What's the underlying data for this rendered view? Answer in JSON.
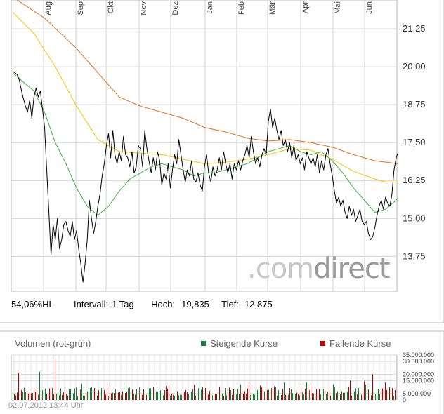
{
  "chart_data": [
    {
      "type": "line",
      "months": [
        "Aug",
        "Sep",
        "Okt",
        "Nov",
        "Dez",
        "Jan",
        "Feb",
        "Mär",
        "Apr",
        "Mai",
        "Jun"
      ],
      "y_ticks": [
        "21,25",
        "20,00",
        "18,75",
        "17,50",
        "16,25",
        "15,00",
        "13,75"
      ],
      "y_tick_values": [
        21.25,
        20.0,
        18.75,
        17.5,
        16.25,
        15.0,
        13.75
      ],
      "ylim": [
        12.6,
        22.2
      ],
      "grid": true,
      "series": [
        {
          "color": "#000000",
          "width": 1,
          "points": [
            [
              0,
              19.85
            ],
            [
              4,
              19.75
            ],
            [
              6,
              19.6
            ],
            [
              9,
              19.1
            ],
            [
              12,
              18.7
            ],
            [
              14,
              18.5
            ],
            [
              16,
              18.9
            ],
            [
              18,
              18.3
            ],
            [
              20,
              19.0
            ],
            [
              22,
              19.3
            ],
            [
              24,
              19.0
            ],
            [
              26,
              19.2
            ],
            [
              28,
              18.6
            ],
            [
              30,
              18.0
            ],
            [
              32,
              16.6
            ],
            [
              34,
              15.2
            ],
            [
              36,
              13.8
            ],
            [
              38,
              14.8
            ],
            [
              40,
              14.3
            ],
            [
              42,
              15.0
            ],
            [
              44,
              14.0
            ],
            [
              46,
              14.3
            ],
            [
              48,
              14.8
            ],
            [
              50,
              14.9
            ],
            [
              52,
              14.6
            ],
            [
              54,
              14.4
            ],
            [
              56,
              14.9
            ],
            [
              58,
              14.3
            ],
            [
              60,
              14.6
            ],
            [
              62,
              14.0
            ],
            [
              64,
              13.5
            ],
            [
              66,
              12.9
            ],
            [
              68,
              13.5
            ],
            [
              70,
              14.3
            ],
            [
              72,
              15.6
            ],
            [
              74,
              15.0
            ],
            [
              76,
              14.5
            ],
            [
              78,
              14.9
            ],
            [
              80,
              15.4
            ],
            [
              82,
              15.8
            ],
            [
              84,
              16.4
            ],
            [
              86,
              16.8
            ],
            [
              88,
              17.4
            ],
            [
              90,
              17.8
            ],
            [
              92,
              17.0
            ],
            [
              94,
              17.9
            ],
            [
              96,
              17.1
            ],
            [
              98,
              16.8
            ],
            [
              100,
              17.2
            ],
            [
              102,
              16.9
            ],
            [
              104,
              17.7
            ],
            [
              106,
              17.1
            ],
            [
              108,
              17.0
            ],
            [
              110,
              16.7
            ],
            [
              112,
              17.2
            ],
            [
              114,
              16.5
            ],
            [
              116,
              16.7
            ],
            [
              118,
              17.4
            ],
            [
              120,
              17.3
            ],
            [
              122,
              16.7
            ],
            [
              124,
              17.9
            ],
            [
              126,
              17.3
            ],
            [
              128,
              16.9
            ],
            [
              130,
              16.5
            ],
            [
              132,
              17.0
            ],
            [
              134,
              16.6
            ],
            [
              136,
              17.2
            ],
            [
              138,
              16.9
            ],
            [
              140,
              16.1
            ],
            [
              142,
              16.5
            ],
            [
              144,
              16.3
            ],
            [
              146,
              16.8
            ],
            [
              148,
              16.0
            ],
            [
              150,
              16.6
            ],
            [
              152,
              17.1
            ],
            [
              154,
              16.8
            ],
            [
              156,
              17.6
            ],
            [
              158,
              17.1
            ],
            [
              160,
              16.6
            ],
            [
              162,
              16.2
            ],
            [
              164,
              16.6
            ],
            [
              166,
              16.4
            ],
            [
              168,
              16.9
            ],
            [
              170,
              16.3
            ],
            [
              172,
              16.2
            ],
            [
              174,
              16.5
            ],
            [
              176,
              16.1
            ],
            [
              178,
              15.9
            ],
            [
              180,
              16.7
            ],
            [
              182,
              17.1
            ],
            [
              184,
              16.5
            ],
            [
              186,
              16.2
            ],
            [
              188,
              16.7
            ],
            [
              190,
              16.4
            ],
            [
              192,
              16.6
            ],
            [
              194,
              17.0
            ],
            [
              196,
              16.6
            ],
            [
              198,
              17.2
            ],
            [
              200,
              16.8
            ],
            [
              202,
              16.5
            ],
            [
              204,
              16.8
            ],
            [
              206,
              16.3
            ],
            [
              208,
              16.8
            ],
            [
              210,
              16.6
            ],
            [
              212,
              16.9
            ],
            [
              214,
              16.6
            ],
            [
              216,
              16.9
            ],
            [
              218,
              17.1
            ],
            [
              220,
              17.4
            ],
            [
              222,
              17.0
            ],
            [
              224,
              17.7
            ],
            [
              226,
              17.2
            ],
            [
              228,
              16.8
            ],
            [
              230,
              17.0
            ],
            [
              232,
              16.7
            ],
            [
              234,
              17.1
            ],
            [
              236,
              17.3
            ],
            [
              238,
              17.1
            ],
            [
              240,
              18.2
            ],
            [
              242,
              18.6
            ],
            [
              244,
              18.0
            ],
            [
              246,
              18.3
            ],
            [
              248,
              17.9
            ],
            [
              250,
              17.6
            ],
            [
              252,
              17.9
            ],
            [
              254,
              17.4
            ],
            [
              256,
              17.6
            ],
            [
              258,
              17.2
            ],
            [
              260,
              17.5
            ],
            [
              262,
              17.0
            ],
            [
              264,
              17.4
            ],
            [
              266,
              16.9
            ],
            [
              268,
              17.1
            ],
            [
              270,
              16.8
            ],
            [
              272,
              17.0
            ],
            [
              274,
              16.6
            ],
            [
              276,
              17.2
            ],
            [
              278,
              17.0
            ],
            [
              280,
              16.8
            ],
            [
              282,
              17.0
            ],
            [
              284,
              16.7
            ],
            [
              286,
              17.1
            ],
            [
              288,
              16.5
            ],
            [
              290,
              16.9
            ],
            [
              292,
              16.6
            ],
            [
              294,
              17.1
            ],
            [
              296,
              17.3
            ],
            [
              298,
              16.8
            ],
            [
              300,
              16.4
            ],
            [
              302,
              15.9
            ],
            [
              304,
              15.5
            ],
            [
              306,
              15.7
            ],
            [
              308,
              15.4
            ],
            [
              310,
              15.6
            ],
            [
              312,
              15.2
            ],
            [
              314,
              15.0
            ],
            [
              316,
              15.4
            ],
            [
              318,
              15.1
            ],
            [
              320,
              15.3
            ],
            [
              322,
              14.9
            ],
            [
              324,
              15.1
            ],
            [
              326,
              15.3
            ],
            [
              328,
              14.9
            ],
            [
              330,
              14.8
            ],
            [
              332,
              14.9
            ],
            [
              334,
              14.5
            ],
            [
              336,
              14.3
            ],
            [
              338,
              14.4
            ],
            [
              340,
              14.7
            ],
            [
              342,
              15.1
            ],
            [
              344,
              15.4
            ],
            [
              346,
              15.6
            ],
            [
              348,
              15.3
            ],
            [
              350,
              15.7
            ],
            [
              352,
              15.5
            ],
            [
              354,
              15.4
            ],
            [
              356,
              15.8
            ],
            [
              358,
              16.6
            ],
            [
              360,
              17.0
            ],
            [
              362,
              17.2
            ]
          ]
        },
        {
          "color": "#3cb43c",
          "width": 1,
          "points": [
            [
              0,
              19.8
            ],
            [
              10,
              19.5
            ],
            [
              20,
              19.2
            ],
            [
              30,
              18.5
            ],
            [
              40,
              17.5
            ],
            [
              50,
              16.8
            ],
            [
              60,
              16.0
            ],
            [
              70,
              15.4
            ],
            [
              80,
              15.1
            ],
            [
              90,
              15.4
            ],
            [
              100,
              15.9
            ],
            [
              110,
              16.3
            ],
            [
              120,
              16.5
            ],
            [
              130,
              16.7
            ],
            [
              140,
              16.8
            ],
            [
              150,
              16.7
            ],
            [
              160,
              16.6
            ],
            [
              170,
              16.4
            ],
            [
              180,
              16.5
            ],
            [
              190,
              16.5
            ],
            [
              200,
              16.6
            ],
            [
              210,
              16.7
            ],
            [
              220,
              16.8
            ],
            [
              230,
              17.0
            ],
            [
              240,
              17.2
            ],
            [
              250,
              17.3
            ],
            [
              260,
              17.4
            ],
            [
              270,
              17.2
            ],
            [
              280,
              17.1
            ],
            [
              290,
              17.2
            ],
            [
              300,
              16.9
            ],
            [
              310,
              16.5
            ],
            [
              320,
              16.0
            ],
            [
              330,
              15.6
            ],
            [
              340,
              15.2
            ],
            [
              350,
              15.3
            ],
            [
              360,
              15.6
            ],
            [
              362,
              15.7
            ]
          ]
        },
        {
          "color": "#ffc000",
          "width": 1,
          "points": [
            [
              0,
              21.8
            ],
            [
              20,
              21.1
            ],
            [
              40,
              20.0
            ],
            [
              60,
              18.7
            ],
            [
              80,
              17.6
            ],
            [
              100,
              17.2
            ],
            [
              120,
              17.15
            ],
            [
              140,
              17.1
            ],
            [
              160,
              16.95
            ],
            [
              180,
              16.8
            ],
            [
              200,
              16.85
            ],
            [
              220,
              16.95
            ],
            [
              240,
              17.1
            ],
            [
              260,
              17.3
            ],
            [
              280,
              17.25
            ],
            [
              300,
              16.95
            ],
            [
              320,
              16.55
            ],
            [
              340,
              16.3
            ],
            [
              350,
              16.2
            ],
            [
              362,
              16.2
            ]
          ]
        },
        {
          "color": "#e0701c",
          "width": 1,
          "points": [
            [
              0,
              22.3
            ],
            [
              30,
              21.6
            ],
            [
              60,
              20.6
            ],
            [
              80,
              19.8
            ],
            [
              100,
              19.0
            ],
            [
              120,
              18.7
            ],
            [
              140,
              18.5
            ],
            [
              160,
              18.3
            ],
            [
              180,
              18.0
            ],
            [
              200,
              17.85
            ],
            [
              220,
              17.65
            ],
            [
              240,
              17.55
            ],
            [
              260,
              17.6
            ],
            [
              280,
              17.5
            ],
            [
              300,
              17.35
            ],
            [
              320,
              17.1
            ],
            [
              340,
              16.9
            ],
            [
              362,
              16.8
            ]
          ]
        }
      ]
    },
    {
      "type": "bar",
      "title": "Volumen (rot-grün)",
      "y_ticks": [
        "35.000.000",
        "30.000.000",
        "20.000.000",
        "15.000.000",
        "5.000.000",
        "0"
      ],
      "y_tick_values": [
        35000000,
        30000000,
        20000000,
        15000000,
        5000000,
        0
      ],
      "ylim": [
        0,
        35000000
      ],
      "legend_up": "Steigende Kurse",
      "legend_down": "Fallende Kurse",
      "up_color": "#1a7a3a",
      "down_color": "#c00000"
    }
  ],
  "stats": {
    "hl": "54,06%HL",
    "interval_label": "Intervall:",
    "interval_value": "1 Tag",
    "high_label": "Hoch:",
    "high_value": "19,835",
    "low_label": "Tief:",
    "low_value": "12,875"
  },
  "timestamp": "02.07.2012 13:44 Uhr",
  "watermark": {
    "prefix": ".com",
    "suffix": "direct"
  }
}
